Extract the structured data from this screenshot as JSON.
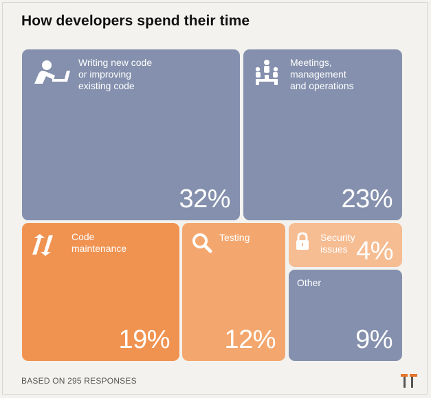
{
  "title": "How developers spend their time",
  "footer": "BASED ON 295 RESPONSES",
  "colors": {
    "blue": "#8490ad",
    "orange": "#f09351",
    "light_orange": "#f3a76e",
    "lightest_orange": "#f6bd93"
  },
  "chart_data": {
    "type": "treemap",
    "title": "How developers spend their time",
    "unit": "%",
    "categories": [
      "Writing new code or improving existing code",
      "Meetings, management and operations",
      "Code maintenance",
      "Testing",
      "Security issues",
      "Other"
    ],
    "values": [
      32,
      23,
      19,
      12,
      4,
      9
    ],
    "items": [
      {
        "label": "Writing new code\nor improving\nexisting code",
        "value": 32,
        "value_text": "32%",
        "icon": "developer-at-laptop-icon",
        "color": "#8490ad"
      },
      {
        "label": "Meetings,\nmanagement\nand operations",
        "value": 23,
        "value_text": "23%",
        "icon": "meeting-presentation-icon",
        "color": "#8490ad"
      },
      {
        "label": "Code\nmaintenance",
        "value": 19,
        "value_text": "19%",
        "icon": "refresh-arrows-icon",
        "color": "#f09351"
      },
      {
        "label": "Testing",
        "value": 12,
        "value_text": "12%",
        "icon": "magnifier-icon",
        "color": "#f3a76e"
      },
      {
        "label": "Security\nissues",
        "value": 4,
        "value_text": "4%",
        "icon": "padlock-icon",
        "color": "#f6bd93"
      },
      {
        "label": "Other",
        "value": 9,
        "value_text": "9%",
        "icon": "",
        "color": "#8490ad"
      }
    ]
  }
}
